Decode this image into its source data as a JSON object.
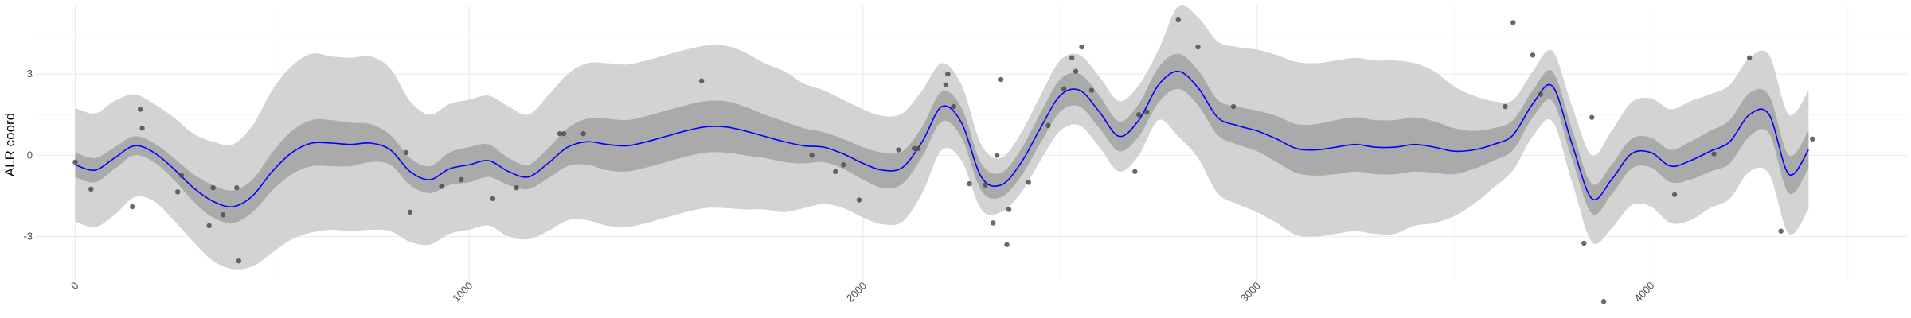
{
  "chart_data": {
    "type": "line",
    "title": "",
    "xlabel": "",
    "ylabel": "ALR coord",
    "xlim": [
      -100,
      4650
    ],
    "ylim": [
      -4.6,
      5.5
    ],
    "grid": true,
    "x_ticks": [
      0,
      1000,
      2000,
      3000,
      4000
    ],
    "x_tick_labels": [
      "0",
      "1000",
      "2000",
      "3000",
      "4000"
    ],
    "x_tick_rotation": -45,
    "y_ticks": [
      -3,
      0,
      3
    ],
    "y_tick_labels": [
      "-3",
      "0",
      "3"
    ],
    "colors": {
      "line": "#0000ff",
      "inner_band": "#aaaaaa",
      "outer_band": "#d3d3d3",
      "points": "#4d4d4d",
      "grid_major": "#ebebeb",
      "grid_minor": "#f4f4f4"
    },
    "series": [
      {
        "role": "mean",
        "x": [
          0,
          50,
          100,
          150,
          200,
          250,
          300,
          350,
          400,
          450,
          500,
          550,
          600,
          650,
          700,
          750,
          800,
          850,
          900,
          950,
          1000,
          1050,
          1100,
          1150,
          1200,
          1250,
          1300,
          1350,
          1400,
          1450,
          1500,
          1550,
          1600,
          1650,
          1700,
          1750,
          1800,
          1850,
          1900,
          1950,
          2000,
          2050,
          2100,
          2150,
          2200,
          2250,
          2300,
          2350,
          2400,
          2450,
          2500,
          2550,
          2600,
          2650,
          2700,
          2750,
          2800,
          2850,
          2900,
          2950,
          3000,
          3050,
          3100,
          3150,
          3200,
          3250,
          3300,
          3350,
          3400,
          3450,
          3500,
          3550,
          3600,
          3650,
          3700,
          3750,
          3800,
          3850,
          3900,
          3950,
          4000,
          4050,
          4100,
          4150,
          4200,
          4250,
          4300,
          4350,
          4400
        ],
        "y": [
          -0.35,
          -0.55,
          -0.1,
          0.35,
          0.1,
          -0.5,
          -1.2,
          -1.7,
          -1.9,
          -1.5,
          -0.6,
          0.1,
          0.45,
          0.45,
          0.4,
          0.45,
          0.2,
          -0.6,
          -0.9,
          -0.5,
          -0.35,
          -0.2,
          -0.6,
          -0.8,
          -0.3,
          0.3,
          0.5,
          0.4,
          0.35,
          0.5,
          0.7,
          0.9,
          1.05,
          1.05,
          0.9,
          0.7,
          0.5,
          0.35,
          0.3,
          0.05,
          -0.3,
          -0.55,
          -0.45,
          0.5,
          1.8,
          1.2,
          -0.8,
          -1.1,
          -0.3,
          1.0,
          2.2,
          2.4,
          1.6,
          0.7,
          1.3,
          2.6,
          3.1,
          2.5,
          1.4,
          1.1,
          0.9,
          0.6,
          0.25,
          0.2,
          0.3,
          0.4,
          0.3,
          0.3,
          0.4,
          0.3,
          0.15,
          0.2,
          0.4,
          0.75,
          1.9,
          2.55,
          0.4,
          -1.6,
          -0.9,
          0.05,
          0.1,
          -0.4,
          -0.2,
          0.15,
          0.5,
          1.5,
          1.5,
          -0.7,
          0.2
        ],
        "inner_half_width": [
          0.45,
          0.45,
          0.4,
          0.35,
          0.35,
          0.4,
          0.5,
          0.6,
          0.6,
          0.6,
          0.7,
          0.8,
          0.85,
          0.85,
          0.8,
          0.7,
          0.55,
          0.5,
          0.5,
          0.6,
          0.65,
          0.6,
          0.5,
          0.45,
          0.55,
          0.7,
          0.85,
          0.95,
          0.95,
          0.95,
          0.95,
          0.95,
          0.95,
          0.95,
          0.9,
          0.8,
          0.75,
          0.65,
          0.55,
          0.55,
          0.6,
          0.65,
          0.6,
          0.55,
          0.55,
          0.55,
          0.5,
          0.45,
          0.5,
          0.55,
          0.6,
          0.6,
          0.6,
          0.55,
          0.6,
          0.65,
          0.65,
          0.65,
          0.65,
          0.7,
          0.75,
          0.85,
          0.9,
          0.95,
          1.0,
          1.0,
          1.0,
          1.0,
          1.0,
          0.95,
          0.85,
          0.7,
          0.6,
          0.55,
          0.5,
          0.55,
          0.55,
          0.55,
          0.55,
          0.55,
          0.55,
          0.6,
          0.7,
          0.75,
          0.8,
          0.8,
          0.7,
          0.7,
          0.7
        ],
        "outer_half_width": [
          2.1,
          2.1,
          2.1,
          1.9,
          1.8,
          1.9,
          2.0,
          2.2,
          2.3,
          2.6,
          3.0,
          3.2,
          3.3,
          3.2,
          3.2,
          3.2,
          3.0,
          2.6,
          2.4,
          2.4,
          2.4,
          2.4,
          2.4,
          2.3,
          2.5,
          2.7,
          2.9,
          3.0,
          3.0,
          3.0,
          3.0,
          3.0,
          3.0,
          3.0,
          2.9,
          2.7,
          2.6,
          2.3,
          2.1,
          2.0,
          2.0,
          2.0,
          2.0,
          1.9,
          1.6,
          1.4,
          1.2,
          1.0,
          1.1,
          1.2,
          1.3,
          1.3,
          1.3,
          1.3,
          1.3,
          1.3,
          2.4,
          2.6,
          2.8,
          2.9,
          3.0,
          3.1,
          3.2,
          3.2,
          3.2,
          3.2,
          3.2,
          3.2,
          3.0,
          2.8,
          2.4,
          2.0,
          1.6,
          1.3,
          1.2,
          1.3,
          1.4,
          1.6,
          1.8,
          1.9,
          2.0,
          2.1,
          2.2,
          2.1,
          2.1,
          2.1,
          2.2,
          2.2,
          2.2
        ]
      },
      {
        "role": "points",
        "x": [
          0,
          40,
          145,
          165,
          170,
          260,
          270,
          340,
          350,
          375,
          415,
          410,
          840,
          850,
          930,
          980,
          1060,
          1120,
          1230,
          1240,
          1290,
          1590,
          1870,
          1930,
          1950,
          1990,
          2090,
          2130,
          2140,
          2210,
          2215,
          2230,
          2270,
          2310,
          2330,
          2340,
          2350,
          2365,
          2370,
          2420,
          2470,
          2510,
          2530,
          2540,
          2555,
          2580,
          2690,
          2700,
          2720,
          2800,
          2850,
          2940,
          3630,
          3650,
          3700,
          3720,
          3830,
          3850,
          3880,
          4060,
          4160,
          4250,
          4330,
          4410
        ],
        "y": [
          -0.25,
          -1.25,
          -1.9,
          1.7,
          1.0,
          -1.35,
          -0.75,
          -2.6,
          -1.2,
          -2.2,
          -3.9,
          -1.2,
          0.1,
          -2.1,
          -1.15,
          -0.9,
          -1.6,
          -1.2,
          0.8,
          0.8,
          0.8,
          2.75,
          0.0,
          -0.6,
          -0.35,
          -1.65,
          0.2,
          0.25,
          0.25,
          2.6,
          3.0,
          1.8,
          -1.05,
          -1.1,
          -2.5,
          0.0,
          2.8,
          -3.3,
          -2.0,
          -1.0,
          1.1,
          2.45,
          3.6,
          3.1,
          4.0,
          2.4,
          -0.6,
          1.5,
          1.6,
          5.0,
          4.0,
          1.8,
          1.8,
          4.9,
          3.7,
          2.25,
          -3.25,
          1.4,
          -5.4,
          -1.45,
          0.05,
          3.6,
          -2.8,
          0.6
        ]
      }
    ]
  }
}
